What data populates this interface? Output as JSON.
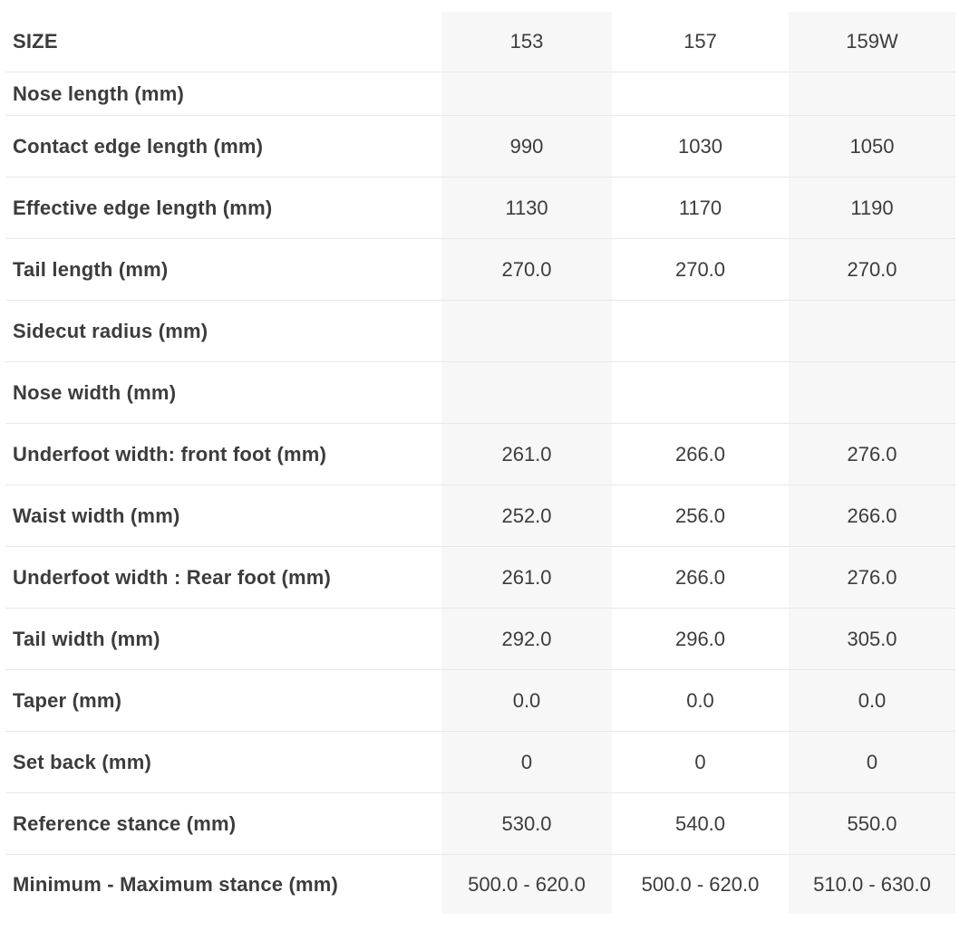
{
  "table": {
    "header": {
      "label": "SIZE",
      "columns": [
        "153",
        "157",
        "159W"
      ]
    },
    "rows": [
      {
        "label": "Nose length (mm)",
        "values": [
          "",
          "",
          ""
        ]
      },
      {
        "label": "Contact edge length (mm)",
        "values": [
          "990",
          "1030",
          "1050"
        ]
      },
      {
        "label": "Effective edge length (mm)",
        "values": [
          "1130",
          "1170",
          "1190"
        ]
      },
      {
        "label": "Tail length (mm)",
        "values": [
          "270.0",
          "270.0",
          "270.0"
        ]
      },
      {
        "label": "Sidecut radius (mm)",
        "values": [
          "",
          "",
          ""
        ]
      },
      {
        "label": "Nose width (mm)",
        "values": [
          "",
          "",
          ""
        ]
      },
      {
        "label": "Underfoot width: front foot (mm)",
        "values": [
          "261.0",
          "266.0",
          "276.0"
        ]
      },
      {
        "label": "Waist width (mm)",
        "values": [
          "252.0",
          "256.0",
          "266.0"
        ]
      },
      {
        "label": "Underfoot width : Rear foot (mm)",
        "values": [
          "261.0",
          "266.0",
          "276.0"
        ]
      },
      {
        "label": "Tail width (mm)",
        "values": [
          "292.0",
          "296.0",
          "305.0"
        ]
      },
      {
        "label": "Taper (mm)",
        "values": [
          "0.0",
          "0.0",
          "0.0"
        ]
      },
      {
        "label": "Set back (mm)",
        "values": [
          "0",
          "0",
          "0"
        ]
      },
      {
        "label": "Reference stance (mm)",
        "values": [
          "530.0",
          "540.0",
          "550.0"
        ]
      },
      {
        "label": "Minimum - Maximum stance (mm)",
        "values": [
          "500.0 - 620.0",
          "500.0 - 620.0",
          "510.0 - 630.0"
        ]
      }
    ],
    "colors": {
      "stripe_bg": "#f7f7f7",
      "separator": "#e8e8e8",
      "text": "#3c3c3c"
    }
  }
}
